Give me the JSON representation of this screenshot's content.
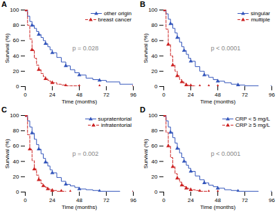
{
  "chart_data": [
    {
      "type": "line",
      "title": "A",
      "annotations": [
        "p = 0.028"
      ],
      "xlabel": "Time (months)",
      "ylabel": "Survival (%)",
      "xlim": [
        0,
        96
      ],
      "ylim": [
        0,
        100
      ],
      "xticks": [
        0,
        24,
        48,
        72,
        96
      ],
      "yticks": [
        0,
        20,
        40,
        60,
        80,
        100
      ],
      "legend": "upper right",
      "series": [
        {
          "name": "other origin",
          "color": "#3355bb",
          "line_style": "solid",
          "marker": "triangle",
          "x": [
            0,
            2,
            4,
            6,
            8,
            10,
            12,
            14,
            16,
            18,
            20,
            22,
            24,
            28,
            32,
            36,
            40,
            44,
            48,
            54,
            60,
            66,
            72,
            84,
            96
          ],
          "values": [
            100,
            92,
            85,
            80,
            76,
            72,
            68,
            64,
            60,
            56,
            52,
            48,
            44,
            38,
            32,
            27,
            22,
            18,
            15,
            11,
            9,
            8,
            6,
            3,
            0
          ]
        },
        {
          "name": "breast cancer",
          "color": "#cc2222",
          "line_style": "dashed",
          "marker": "triangle",
          "x": [
            0,
            2,
            4,
            6,
            8,
            10,
            12,
            14,
            16,
            18,
            20,
            22,
            24,
            28,
            32,
            36,
            40,
            44,
            48,
            54,
            60,
            66,
            72,
            84,
            96
          ],
          "values": [
            100,
            80,
            62,
            48,
            37,
            28,
            22,
            17,
            13,
            10,
            8,
            6,
            5,
            3,
            2,
            1,
            1,
            1,
            0,
            0,
            0,
            0,
            0,
            0,
            0
          ]
        }
      ]
    },
    {
      "type": "line",
      "title": "B",
      "annotations": [
        "p < 0.0001"
      ],
      "xlabel": "Time (months)",
      "ylabel": "Survival (%)",
      "xlim": [
        0,
        96
      ],
      "ylim": [
        0,
        100
      ],
      "xticks": [
        0,
        24,
        48,
        72,
        96
      ],
      "yticks": [
        0,
        20,
        40,
        60,
        80,
        100
      ],
      "legend": "upper right",
      "series": [
        {
          "name": "singular",
          "color": "#3355bb",
          "line_style": "solid",
          "marker": "triangle",
          "x": [
            0,
            2,
            4,
            6,
            8,
            10,
            12,
            14,
            16,
            18,
            20,
            22,
            24,
            28,
            32,
            36,
            40,
            44,
            48,
            54,
            60,
            66,
            72,
            84,
            96
          ],
          "values": [
            100,
            95,
            88,
            82,
            76,
            70,
            64,
            58,
            52,
            47,
            42,
            37,
            33,
            26,
            20,
            15,
            12,
            9,
            7,
            5,
            3,
            2,
            1,
            0,
            0
          ]
        },
        {
          "name": "multiple",
          "color": "#cc2222",
          "line_style": "dashed",
          "marker": "triangle",
          "x": [
            0,
            2,
            4,
            6,
            8,
            10,
            12,
            14,
            16,
            18,
            20,
            22,
            24,
            28,
            32,
            36,
            40,
            44,
            48,
            96
          ],
          "values": [
            100,
            75,
            55,
            40,
            28,
            20,
            14,
            9,
            6,
            4,
            2,
            1,
            1,
            0,
            0,
            0,
            0,
            0,
            0,
            0
          ]
        }
      ]
    },
    {
      "type": "line",
      "title": "C",
      "annotations": [
        "p = 0.002"
      ],
      "xlabel": "Time (months)",
      "ylabel": "Survival (%)",
      "xlim": [
        0,
        96
      ],
      "ylim": [
        0,
        100
      ],
      "xticks": [
        0,
        24,
        48,
        72,
        96
      ],
      "yticks": [
        0,
        20,
        40,
        60,
        80,
        100
      ],
      "legend": "upper right",
      "series": [
        {
          "name": "supratentorial",
          "color": "#3355bb",
          "line_style": "solid",
          "marker": "triangle",
          "x": [
            0,
            2,
            4,
            6,
            8,
            10,
            12,
            14,
            16,
            18,
            20,
            22,
            24,
            28,
            32,
            36,
            40,
            44,
            48,
            54,
            60,
            66,
            72,
            84,
            96
          ],
          "values": [
            100,
            93,
            85,
            77,
            69,
            62,
            56,
            50,
            44,
            39,
            34,
            29,
            25,
            19,
            14,
            10,
            8,
            6,
            4,
            3,
            2,
            1,
            1,
            0,
            0
          ]
        },
        {
          "name": "infratentorial",
          "color": "#cc2222",
          "line_style": "dashed",
          "marker": "triangle",
          "x": [
            0,
            2,
            4,
            6,
            8,
            10,
            12,
            14,
            16,
            18,
            20,
            22,
            24,
            28,
            32,
            36,
            40,
            48,
            96
          ],
          "values": [
            100,
            75,
            56,
            41,
            30,
            22,
            16,
            11,
            8,
            6,
            4,
            3,
            2,
            1,
            1,
            0,
            0,
            0,
            0
          ]
        }
      ]
    },
    {
      "type": "line",
      "title": "D",
      "annotations": [
        "p < 0.0001"
      ],
      "xlabel": "Time (months)",
      "ylabel": "Survival (%)",
      "xlim": [
        0,
        96
      ],
      "ylim": [
        0,
        100
      ],
      "xticks": [
        0,
        24,
        48,
        72,
        96
      ],
      "yticks": [
        0,
        20,
        40,
        60,
        80,
        100
      ],
      "legend": "upper right",
      "series": [
        {
          "name": "CRP < 5 mg/L",
          "color": "#3355bb",
          "line_style": "solid",
          "marker": "triangle",
          "x": [
            0,
            2,
            4,
            6,
            8,
            10,
            12,
            14,
            16,
            18,
            20,
            22,
            24,
            28,
            32,
            36,
            40,
            44,
            48,
            54,
            60,
            66,
            72,
            84,
            96
          ],
          "values": [
            100,
            93,
            85,
            78,
            71,
            64,
            57,
            51,
            45,
            40,
            35,
            31,
            27,
            21,
            16,
            12,
            9,
            7,
            5,
            3,
            2,
            1,
            1,
            0,
            0
          ]
        },
        {
          "name": "CRP ≥ 5 mg/L",
          "color": "#cc2222",
          "line_style": "dashed",
          "marker": "triangle",
          "x": [
            0,
            2,
            4,
            6,
            8,
            10,
            12,
            14,
            16,
            18,
            20,
            22,
            24,
            28,
            32,
            36,
            40,
            44,
            48,
            96
          ],
          "values": [
            100,
            78,
            60,
            45,
            33,
            24,
            18,
            13,
            9,
            7,
            5,
            4,
            3,
            2,
            1,
            1,
            0,
            0,
            0,
            0
          ]
        }
      ]
    }
  ]
}
